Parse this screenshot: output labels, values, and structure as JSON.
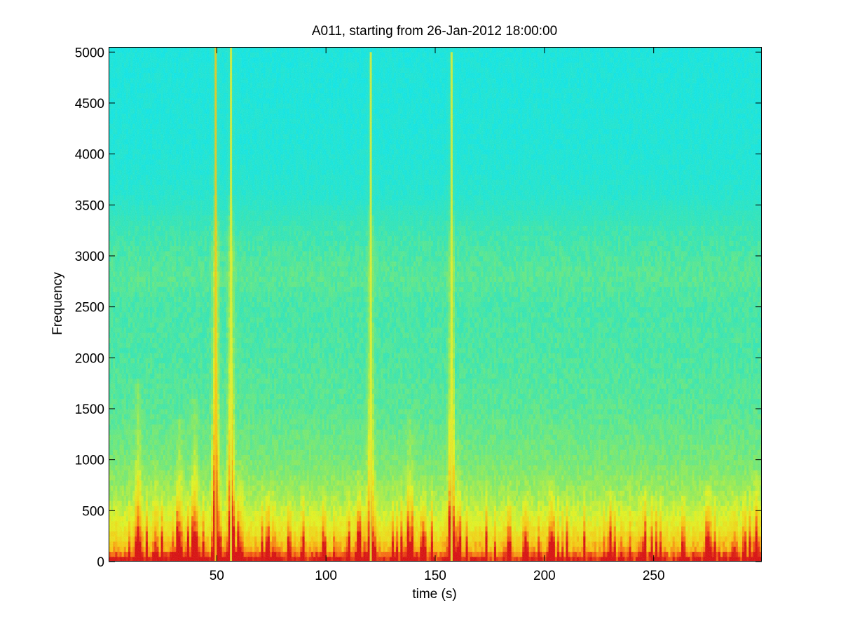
{
  "chart_data": {
    "type": "heatmap",
    "title": "A011, starting from 26-Jan-2012 18:00:00",
    "xlabel": "time (s)",
    "ylabel": "Frequency",
    "xlim": [
      0.5,
      299.5
    ],
    "ylim": [
      0,
      5050
    ],
    "x_ticks": [
      50,
      100,
      150,
      200,
      250
    ],
    "x_tick_labels": [
      "50",
      "100",
      "150",
      "200",
      "250"
    ],
    "y_ticks": [
      0,
      500,
      1000,
      1500,
      2000,
      2500,
      3000,
      3500,
      4000,
      4500,
      5000
    ],
    "y_tick_labels": [
      "0",
      "500",
      "1000",
      "1500",
      "2000",
      "2500",
      "3000",
      "3500",
      "4000",
      "4500",
      "5000"
    ],
    "colormap": "jet",
    "color_range": [
      "#00ffff",
      "#80ff80",
      "#ffff00",
      "#ff8000",
      "#ff0000"
    ],
    "grid": false,
    "description_values": {
      "background_level_by_frequency": [
        {
          "freq": 0,
          "level": 0.95
        },
        {
          "freq": 100,
          "level": 0.82
        },
        {
          "freq": 300,
          "level": 0.72
        },
        {
          "freq": 600,
          "level": 0.62
        },
        {
          "freq": 1000,
          "level": 0.55
        },
        {
          "freq": 1500,
          "level": 0.5
        },
        {
          "freq": 2000,
          "level": 0.48
        },
        {
          "freq": 2500,
          "level": 0.47
        },
        {
          "freq": 2800,
          "level": 0.5
        },
        {
          "freq": 3000,
          "level": 0.48
        },
        {
          "freq": 3300,
          "level": 0.44
        },
        {
          "freq": 3600,
          "level": 0.36
        },
        {
          "freq": 4000,
          "level": 0.33
        },
        {
          "freq": 5050,
          "level": 0.31
        }
      ],
      "broadband_events": [
        {
          "time": 14,
          "strength": 0.55,
          "reach": 1800
        },
        {
          "time": 22,
          "strength": 0.35,
          "reach": 1000
        },
        {
          "time": 33,
          "strength": 0.5,
          "reach": 1400
        },
        {
          "time": 40,
          "strength": 0.6,
          "reach": 1600
        },
        {
          "time": 49.5,
          "strength": 0.9,
          "reach": 5050
        },
        {
          "time": 56.5,
          "strength": 0.75,
          "reach": 5050
        },
        {
          "time": 61,
          "strength": 0.35,
          "reach": 1000
        },
        {
          "time": 76,
          "strength": 0.25,
          "reach": 700
        },
        {
          "time": 115,
          "strength": 0.4,
          "reach": 900
        },
        {
          "time": 120.5,
          "strength": 0.55,
          "reach": 5000
        },
        {
          "time": 138.5,
          "strength": 0.4,
          "reach": 1500
        },
        {
          "time": 157.5,
          "strength": 0.7,
          "reach": 5000
        },
        {
          "time": 160,
          "strength": 0.35,
          "reach": 1200
        },
        {
          "time": 192,
          "strength": 0.3,
          "reach": 700
        },
        {
          "time": 203,
          "strength": 0.35,
          "reach": 800
        },
        {
          "time": 230,
          "strength": 0.3,
          "reach": 700
        },
        {
          "time": 245,
          "strength": 0.3,
          "reach": 700
        },
        {
          "time": 275,
          "strength": 0.35,
          "reach": 800
        },
        {
          "time": 287,
          "strength": 0.3,
          "reach": 700
        },
        {
          "time": 297,
          "strength": 0.4,
          "reach": 900
        }
      ]
    }
  }
}
